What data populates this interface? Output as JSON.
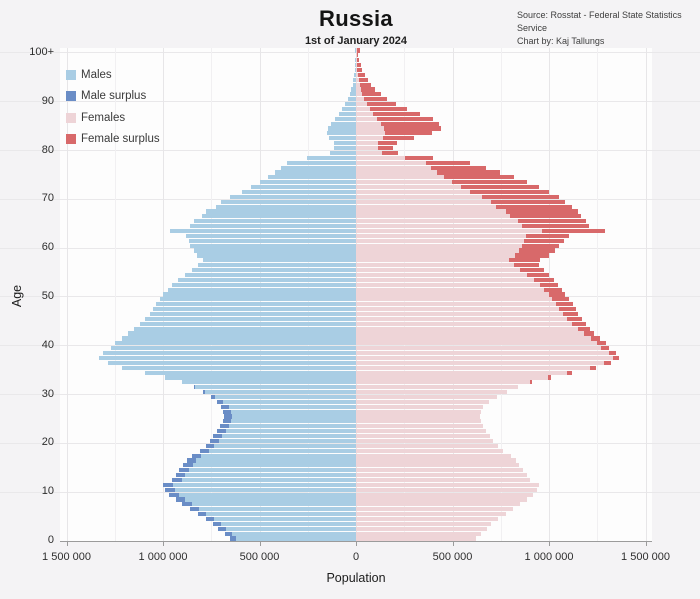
{
  "attribution": {
    "line1": "Source: Rosstat - Federal State Statistics Service",
    "line2": "Chart by: Kaj Tallungs"
  },
  "colors": {
    "background": "#f4f3f5",
    "plot_background": "#fdfdfd",
    "grid_major": "#e7e6e8",
    "grid_minor": "#f1f0f2",
    "axis": "#9b9b9b",
    "males": "#a9cde4",
    "male_surplus": "#6a8dc6",
    "females": "#eed4d7",
    "female_surplus": "#d8696a"
  },
  "chart_data": {
    "type": "bar",
    "variant": "population-pyramid",
    "title": "Russia",
    "subtitle": "1st of January 2024",
    "xlabel": "Population",
    "ylabel": "Age",
    "x_tick_labels": [
      "1 500 000",
      "1 000 000",
      "500 000",
      "0",
      "500 000",
      "1 000 000",
      "1 500 000"
    ],
    "x_tick_values": [
      -1500000,
      -1000000,
      -500000,
      0,
      500000,
      1000000,
      1500000
    ],
    "y_tick_labels": [
      "0",
      "10",
      "20",
      "30",
      "40",
      "50",
      "60",
      "70",
      "80",
      "90",
      "100+"
    ],
    "y_tick_values": [
      0,
      10,
      20,
      30,
      40,
      50,
      60,
      70,
      80,
      90,
      100
    ],
    "xlim": [
      -1530000,
      1530000
    ],
    "ages": "single years 0 to 100+, bottom = age 0, top = age 100+",
    "grid": "horizontal lines every 10 years of age; vertical lines every 250 000 (major every 500 000)",
    "legend_position": "top-left",
    "legend": [
      {
        "label": "Males",
        "color": "#a9cde4"
      },
      {
        "label": "Male surplus",
        "color": "#6a8dc6"
      },
      {
        "label": "Females",
        "color": "#eed4d7"
      },
      {
        "label": "Female surplus",
        "color": "#d8696a"
      }
    ],
    "series": [
      {
        "name": "Males",
        "values": [
          655000,
          680000,
          715000,
          740000,
          775000,
          820000,
          860000,
          900000,
          935000,
          970000,
          990000,
          1000000,
          955000,
          935000,
          915000,
          895000,
          875000,
          850000,
          810000,
          780000,
          755000,
          740000,
          720000,
          705000,
          690000,
          685000,
          690000,
          700000,
          722000,
          752000,
          792000,
          842000,
          902000,
          992000,
          1092000,
          1212000,
          1287000,
          1330000,
          1310000,
          1268000,
          1248000,
          1215000,
          1180000,
          1150000,
          1120000,
          1095000,
          1070000,
          1052000,
          1035000,
          1015000,
          998000,
          975000,
          952000,
          922000,
          885000,
          852000,
          820000,
          795000,
          825000,
          842000,
          858000,
          868000,
          880000,
          965000,
          862000,
          840000,
          797000,
          775000,
          727000,
          698000,
          655000,
          592000,
          542000,
          497000,
          457000,
          420000,
          390000,
          360000,
          255000,
          135000,
          112000,
          116000,
          140000,
          152000,
          147000,
          131000,
          110000,
          90000,
          71000,
          55000,
          42000,
          32000,
          24000,
          18000,
          13500,
          10000,
          7200,
          5200,
          3700,
          2600,
          4500
        ]
      },
      {
        "name": "Females",
        "values": [
          620000,
          645000,
          676000,
          700000,
          734000,
          776000,
          814000,
          851000,
          884000,
          917000,
          936000,
          946000,
          903000,
          884000,
          865000,
          846000,
          828000,
          804000,
          763000,
          734000,
          709000,
          693000,
          673000,
          657000,
          645000,
          640000,
          647000,
          660000,
          690000,
          730000,
          780000,
          840000,
          912000,
          1012000,
          1117000,
          1242000,
          1322000,
          1362000,
          1348000,
          1310000,
          1295000,
          1262000,
          1235000,
          1212000,
          1190000,
          1170000,
          1150000,
          1138000,
          1122000,
          1105000,
          1085000,
          1065000,
          1048000,
          1028000,
          1000000,
          975000,
          950000,
          955000,
          1000000,
          1030000,
          1052000,
          1075000,
          1105000,
          1292000,
          1207000,
          1192000,
          1165000,
          1148000,
          1118000,
          1085000,
          1052000,
          1000000,
          950000,
          888000,
          818000,
          745000,
          672000,
          592000,
          400000,
          218000,
          192000,
          212000,
          302000,
          392000,
          438000,
          428000,
          398000,
          330000,
          262000,
          208000,
          162000,
          128000,
          100000,
          78000,
          60000,
          45000,
          33000,
          24000,
          17000,
          12000,
          21000
        ]
      }
    ]
  }
}
